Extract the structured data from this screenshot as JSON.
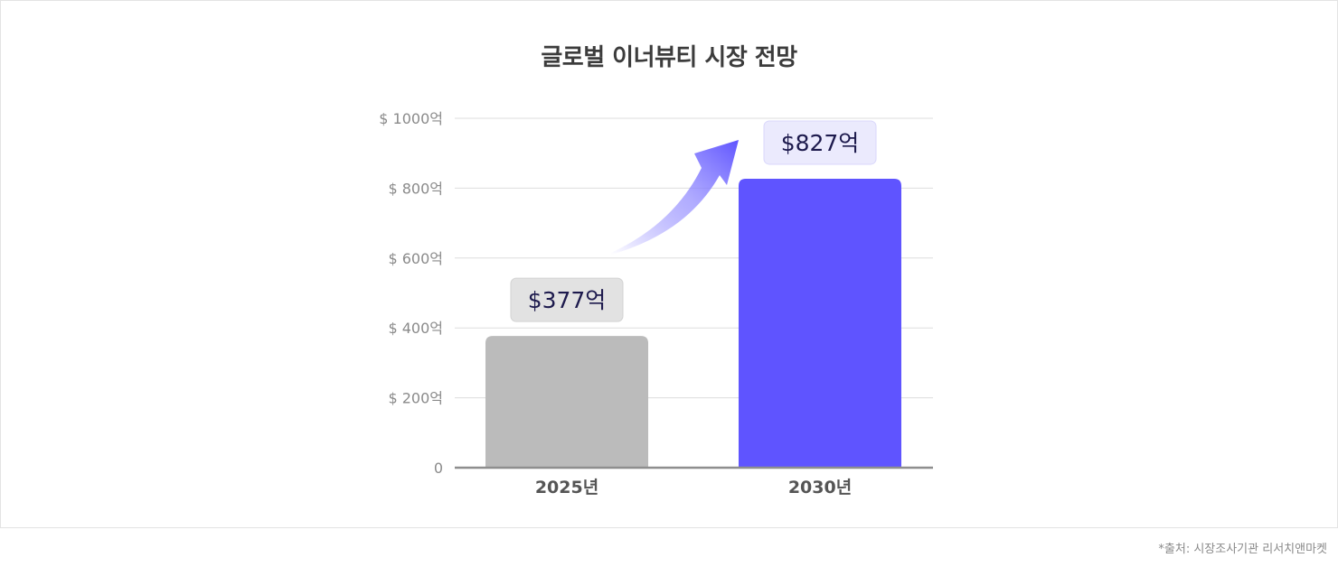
{
  "chart_data": {
    "type": "bar",
    "title": "글로벌 이너뷰티 시장 전망",
    "categories": [
      "2025년",
      "2030년"
    ],
    "values": [
      377,
      827
    ],
    "value_labels": [
      "$377억",
      "$827억"
    ],
    "ylim": [
      0,
      1000
    ],
    "yticks": [
      {
        "value": 0,
        "label": "0"
      },
      {
        "value": 200,
        "label": "$ 200억"
      },
      {
        "value": 400,
        "label": "$ 400억"
      },
      {
        "value": 600,
        "label": "$ 600억"
      },
      {
        "value": 800,
        "label": "$ 800억"
      },
      {
        "value": 1000,
        "label": "$ 1000억"
      }
    ],
    "grid": true,
    "legend": "none",
    "colors": {
      "bar_2025": "#bbbbbb",
      "bar_2030": "#5f54ff",
      "label_bg_2025": "#e2e2e2",
      "label_bg_2030": "#ebeafd",
      "label_text": "#1d1a4d",
      "arrow": "#5f54ff",
      "grid": "#dddddd",
      "axis": "#8e8e8e"
    }
  },
  "source": "*출처: 시장조사기관 리서치앤마켓"
}
